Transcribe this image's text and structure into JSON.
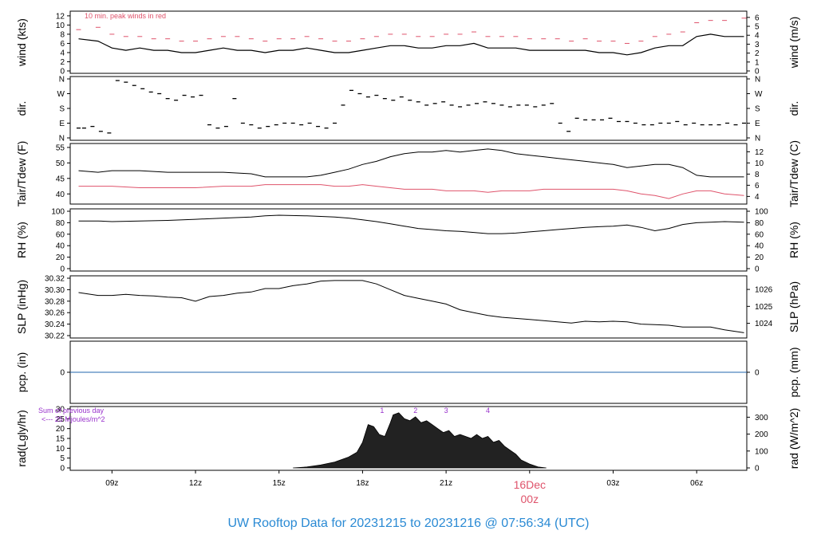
{
  "footer": {
    "prefix": "UW Rooftop Data for",
    "start": "20231215",
    "to": "to",
    "end": "20231216 @ 07:56:34",
    "tz": "(UTC)"
  },
  "colors": {
    "series": "#000000",
    "peak": "#df536b",
    "zero_line": "#2166ac",
    "annotation": "#9932cc",
    "date_label": "#df536b"
  },
  "chart_data": [
    {
      "type": "line",
      "panel": "wind",
      "ylabel_left": "wind (kts)",
      "ylabel_right": "wind (m/s)",
      "annotation": "10 min. peak winds in red",
      "ylim": [
        0,
        12.5
      ],
      "yticks_left": [
        "0",
        "2",
        "4",
        "6",
        "8",
        "10",
        "12"
      ],
      "yticks_right": [
        "0",
        "1",
        "2",
        "3",
        "4",
        "5",
        "6"
      ],
      "series": [
        {
          "role": "mean",
          "x": [
            7.8,
            8.5,
            9,
            9.5,
            10,
            10.5,
            11,
            11.5,
            12,
            12.5,
            13,
            13.5,
            14,
            14.5,
            15,
            15.5,
            16,
            16.5,
            17,
            17.5,
            18,
            18.5,
            19,
            19.5,
            20,
            20.5,
            21,
            21.5,
            22,
            22.5,
            23,
            23.5,
            24,
            24.5,
            25,
            25.5,
            26,
            26.5,
            27,
            27.5,
            28,
            28.5,
            29,
            29.5,
            30,
            30.5,
            31,
            31.7
          ],
          "y": [
            7,
            6.5,
            5,
            4.5,
            5,
            4.5,
            4.5,
            4,
            4,
            4.5,
            5,
            4.5,
            4.5,
            4,
            4.5,
            4.5,
            5,
            4.5,
            4,
            4,
            4.5,
            5,
            5.5,
            5.5,
            5,
            5,
            5.5,
            5.5,
            6,
            5,
            5,
            5,
            4.5,
            4.5,
            4.5,
            4.5,
            4.5,
            4,
            4,
            3.5,
            4,
            5,
            5.5,
            5.5,
            7.5,
            8,
            7.5,
            7.5
          ]
        },
        {
          "role": "peak",
          "x": [
            7.8,
            8.5,
            9,
            9.5,
            10,
            10.5,
            11,
            11.5,
            12,
            12.5,
            13,
            13.5,
            14,
            14.5,
            15,
            15.5,
            16,
            16.5,
            17,
            17.5,
            18,
            18.5,
            19,
            19.5,
            20,
            20.5,
            21,
            21.5,
            22,
            22.5,
            23,
            23.5,
            24,
            24.5,
            25,
            25.5,
            26,
            26.5,
            27,
            27.5,
            28,
            28.5,
            29,
            29.5,
            30,
            30.5,
            31,
            31.7
          ],
          "y": [
            9,
            9.5,
            8,
            7.5,
            7.5,
            7,
            7,
            6.5,
            6.5,
            7,
            7.5,
            7.5,
            7,
            6.5,
            7,
            7,
            7.5,
            7,
            6.5,
            6.5,
            7,
            7.5,
            8,
            8,
            7.5,
            7.5,
            8,
            8,
            8.5,
            7.5,
            7.5,
            7.5,
            7,
            7,
            7,
            6.5,
            7,
            6.5,
            6.5,
            6,
            6.5,
            7.5,
            8,
            8.5,
            10.5,
            11,
            11,
            11.5
          ]
        }
      ]
    },
    {
      "type": "scatter",
      "panel": "dir",
      "ylabel_left": "dir.",
      "ylabel_right": "dir.",
      "ylim": [
        0,
        360
      ],
      "yticks_left": [
        "N",
        "E",
        "S",
        "W",
        "N"
      ],
      "yticks_right": [
        "N",
        "E",
        "S",
        "W",
        "N"
      ],
      "x": [
        7.8,
        8,
        8.3,
        8.6,
        8.9,
        9.2,
        9.5,
        9.8,
        10.1,
        10.4,
        10.7,
        11,
        11.3,
        11.6,
        11.9,
        12.2,
        12.5,
        12.8,
        13.1,
        13.4,
        13.7,
        14,
        14.3,
        14.6,
        14.9,
        15.2,
        15.5,
        15.8,
        16.1,
        16.4,
        16.7,
        17,
        17.3,
        17.6,
        17.9,
        18.2,
        18.5,
        18.8,
        19.1,
        19.4,
        19.7,
        20,
        20.3,
        20.6,
        20.9,
        21.2,
        21.5,
        21.8,
        22.1,
        22.4,
        22.7,
        23,
        23.3,
        23.6,
        23.9,
        24.2,
        24.5,
        24.8,
        25.1,
        25.4,
        25.7,
        26,
        26.3,
        26.6,
        26.9,
        27.2,
        27.5,
        27.8,
        28.1,
        28.4,
        28.7,
        29,
        29.3,
        29.6,
        29.9,
        30.2,
        30.5,
        30.8,
        31.1,
        31.4,
        31.7
      ],
      "y": [
        60,
        60,
        70,
        40,
        30,
        350,
        340,
        320,
        300,
        280,
        270,
        240,
        230,
        260,
        250,
        260,
        80,
        60,
        70,
        240,
        90,
        80,
        60,
        70,
        80,
        90,
        90,
        80,
        90,
        70,
        60,
        90,
        200,
        290,
        270,
        250,
        260,
        240,
        230,
        250,
        230,
        220,
        200,
        210,
        220,
        200,
        190,
        200,
        210,
        220,
        210,
        200,
        190,
        200,
        200,
        190,
        200,
        210,
        90,
        40,
        120,
        110,
        110,
        110,
        120,
        100,
        100,
        90,
        80,
        80,
        90,
        90,
        100,
        80,
        90,
        80,
        80,
        80,
        90,
        80,
        90
      ]
    },
    {
      "type": "line",
      "panel": "tair",
      "ylabel_left": "Tair/Tdew (F)",
      "ylabel_right": "Tair/Tdew (C)",
      "ylim": [
        37.5,
        55.5
      ],
      "yticks_left": [
        "40",
        "45",
        "50",
        "55"
      ],
      "yticks_right": [
        "4",
        "6",
        "8",
        "10",
        "12"
      ],
      "series": [
        {
          "role": "tair",
          "x": [
            7.8,
            8.5,
            9,
            10,
            11,
            12,
            13,
            14,
            14.5,
            15,
            16,
            16.5,
            17,
            17.5,
            18,
            18.5,
            19,
            19.5,
            20,
            20.5,
            21,
            21.5,
            22,
            22.5,
            23,
            23.5,
            24,
            24.5,
            25,
            25.5,
            26,
            26.5,
            27,
            27.5,
            28,
            28.5,
            29,
            29.5,
            30,
            30.5,
            31,
            31.7
          ],
          "y": [
            47.5,
            47,
            47.5,
            47.5,
            47,
            47,
            47,
            46.5,
            45.5,
            45.5,
            45.5,
            46,
            47,
            48,
            49.5,
            50.5,
            52,
            53,
            53.5,
            53.5,
            54,
            53.5,
            54,
            54.5,
            54,
            53,
            52.5,
            52,
            51.5,
            51,
            50.5,
            50,
            49.5,
            48.5,
            49,
            49.5,
            49.5,
            48.5,
            46,
            45.5,
            45.5,
            45.5
          ]
        },
        {
          "role": "tdew",
          "x": [
            7.8,
            8.5,
            9,
            10,
            11,
            12,
            13,
            14,
            14.5,
            15,
            16,
            16.5,
            17,
            17.5,
            18,
            18.5,
            19,
            19.5,
            20,
            20.5,
            21,
            21.5,
            22,
            22.5,
            23,
            23.5,
            24,
            24.5,
            25,
            25.5,
            26,
            26.5,
            27,
            27.5,
            28,
            28.5,
            29,
            29.5,
            30,
            30.5,
            31,
            31.7
          ],
          "y": [
            42.5,
            42.5,
            42.5,
            42,
            42,
            42,
            42.5,
            42.5,
            43,
            43,
            43,
            43,
            42.5,
            42.5,
            43,
            42.5,
            42,
            41.5,
            41.5,
            41.5,
            41,
            41,
            41,
            40.5,
            41,
            41,
            41,
            41.5,
            41.5,
            41.5,
            41.5,
            41.5,
            41.5,
            41,
            40,
            39.5,
            38.5,
            40,
            41,
            41,
            40,
            39.5
          ]
        }
      ]
    },
    {
      "type": "line",
      "panel": "rh",
      "ylabel_left": "RH (%)",
      "ylabel_right": "RH (%)",
      "ylim": [
        0,
        100
      ],
      "yticks_left": [
        "0",
        "20",
        "40",
        "60",
        "80",
        "100"
      ],
      "yticks_right": [
        "0",
        "20",
        "40",
        "60",
        "80",
        "100"
      ],
      "x": [
        7.8,
        8.5,
        9,
        10,
        11,
        12,
        13,
        14,
        14.5,
        15,
        16,
        16.5,
        17,
        17.5,
        18,
        18.5,
        19,
        19.5,
        20,
        20.5,
        21,
        21.5,
        22,
        22.5,
        23,
        23.5,
        24,
        24.5,
        25,
        25.5,
        26,
        26.5,
        27,
        27.5,
        28,
        28.5,
        29,
        29.5,
        30,
        30.5,
        31,
        31.7
      ],
      "y": [
        83,
        83,
        82,
        83,
        84,
        86,
        88,
        90,
        92,
        93,
        92,
        91,
        90,
        88,
        85,
        82,
        78,
        74,
        70,
        68,
        66,
        65,
        63,
        61,
        61,
        62,
        64,
        66,
        68,
        70,
        72,
        73,
        74,
        76,
        72,
        66,
        70,
        77,
        80,
        81,
        82,
        81
      ]
    },
    {
      "type": "line",
      "panel": "slp",
      "ylabel_left": "SLP (inHg)",
      "ylabel_right": "SLP (hPa)",
      "ylim": [
        30.22,
        30.32
      ],
      "yticks_left": [
        "30.22",
        "30.24",
        "30.26",
        "30.28",
        "30.30",
        "30.32"
      ],
      "yticks_right": [
        "1024",
        "1025",
        "1026"
      ],
      "x": [
        7.8,
        8.5,
        9,
        9.5,
        10,
        10.5,
        11,
        11.5,
        12,
        12.5,
        13,
        13.5,
        14,
        14.5,
        15,
        15.5,
        16,
        16.5,
        17,
        17.5,
        18,
        18.5,
        19,
        19.5,
        20,
        20.5,
        21,
        21.5,
        22,
        22.5,
        23,
        23.5,
        24,
        24.5,
        25,
        25.5,
        26,
        26.5,
        27,
        27.5,
        28,
        28.5,
        29,
        29.5,
        30,
        30.5,
        31,
        31.7
      ],
      "y": [
        30.295,
        30.29,
        30.29,
        30.292,
        30.29,
        30.289,
        30.287,
        30.286,
        30.28,
        30.288,
        30.29,
        30.294,
        30.296,
        30.302,
        30.302,
        30.307,
        30.31,
        30.315,
        30.316,
        30.316,
        30.316,
        30.31,
        30.3,
        30.29,
        30.285,
        30.28,
        30.275,
        30.265,
        30.26,
        30.255,
        30.252,
        30.25,
        30.248,
        30.246,
        30.244,
        30.242,
        30.245,
        30.244,
        30.245,
        30.244,
        30.24,
        30.239,
        30.238,
        30.235,
        30.235,
        30.235,
        30.23,
        30.225
      ]
    },
    {
      "type": "line",
      "panel": "pcp",
      "ylabel_left": "pcp. (in)",
      "ylabel_right": "pcp. (mm)",
      "ylim": [
        -1,
        1
      ],
      "yticks_left": [
        "0"
      ],
      "yticks_right": [
        "0"
      ],
      "x": [
        7.8,
        31.7
      ],
      "y": [
        0,
        0
      ]
    },
    {
      "type": "area",
      "panel": "rad",
      "ylabel_left": "rad(Lgly/hr)",
      "ylabel_right": "rad (W/m^2)",
      "annotation": [
        "Sum of previous day",
        "<--- 25 Mjoules/m^2"
      ],
      "day_markers": [
        "1",
        "2",
        "3",
        "4"
      ],
      "ylim": [
        0,
        30
      ],
      "yticks_left": [
        "0",
        "5",
        "10",
        "15",
        "20",
        "25",
        "30"
      ],
      "yticks_right": [
        "0",
        "100",
        "200",
        "300"
      ],
      "x": [
        15.5,
        16,
        16.5,
        17,
        17.2,
        17.5,
        17.8,
        18,
        18.2,
        18.4,
        18.6,
        18.8,
        19,
        19.1,
        19.3,
        19.5,
        19.7,
        19.9,
        20.1,
        20.3,
        20.5,
        20.7,
        20.9,
        21.1,
        21.3,
        21.5,
        21.7,
        21.9,
        22.1,
        22.3,
        22.5,
        22.7,
        22.9,
        23.1,
        23.3,
        23.5,
        23.7,
        24,
        24.3,
        24.6
      ],
      "y": [
        0,
        0.5,
        1.5,
        3,
        4,
        5.5,
        8,
        13,
        22,
        21,
        17,
        16,
        23,
        27,
        28,
        25,
        24,
        26,
        23,
        24,
        22,
        20,
        18,
        19,
        16,
        17,
        16,
        15,
        17,
        15,
        16,
        13,
        14,
        11,
        9,
        7,
        4,
        2,
        0.5,
        0
      ]
    }
  ],
  "x_axis": {
    "xlim": [
      7.5,
      31.8
    ],
    "ticks": [
      {
        "x": 9,
        "label": "09z"
      },
      {
        "x": 12,
        "label": "12z"
      },
      {
        "x": 15,
        "label": "15z"
      },
      {
        "x": 18,
        "label": "18z"
      },
      {
        "x": 21,
        "label": "21z"
      },
      {
        "x": 24,
        "label": "00z"
      },
      {
        "x": 27,
        "label": "03z"
      },
      {
        "x": 30,
        "label": "06z"
      }
    ],
    "date_label": "16Dec",
    "date_tick_label": "00z"
  }
}
